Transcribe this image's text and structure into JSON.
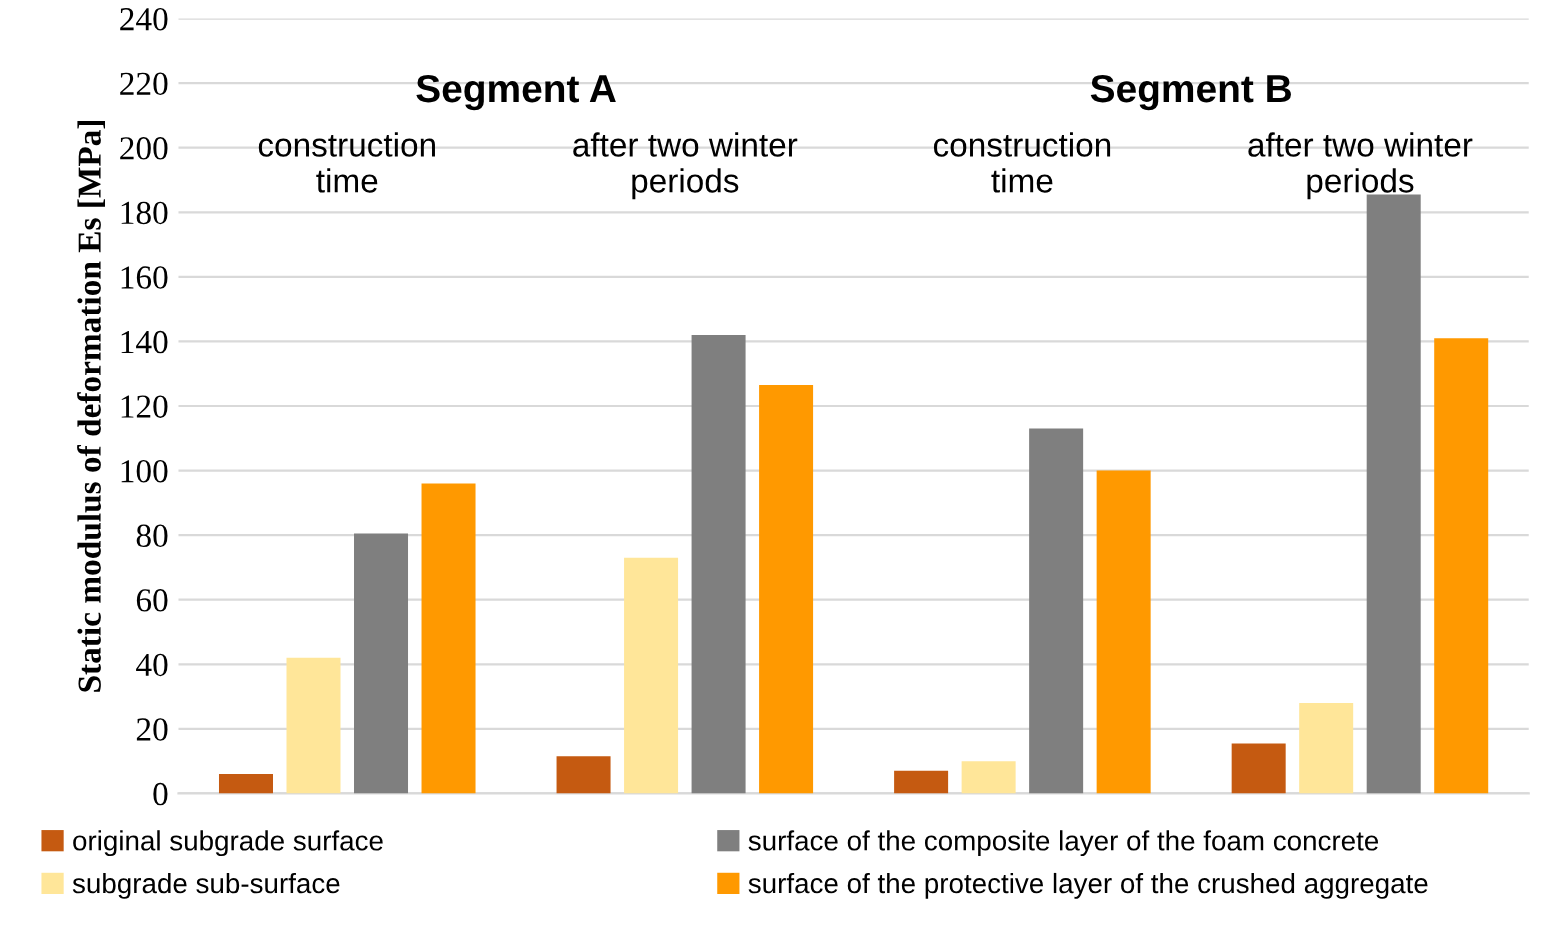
{
  "chart_data": {
    "type": "bar",
    "ylabel": "Static modulus of deformation Es [MPa]",
    "categories": [
      "construction\ntime",
      "after two winter\nperiods",
      "construction\ntime",
      "after two winter\nperiods"
    ],
    "series": [
      {
        "name": "original subgrade surface",
        "color": "#c55a11",
        "values": [
          6,
          11.5,
          7,
          15.5
        ]
      },
      {
        "name": "subgrade sub-surface",
        "color": "#ffe699",
        "values": [
          42,
          73,
          10,
          28
        ]
      },
      {
        "name": "surface of the composite layer of the foam concrete",
        "color": "#7f7f7f",
        "values": [
          80.5,
          142,
          113,
          185.5
        ]
      },
      {
        "name": "surface of the protective layer of the crushed aggregate",
        "color": "#ff9900",
        "values": [
          96,
          126.5,
          100,
          141
        ]
      }
    ],
    "annotations": [
      "Segment A",
      "Segment B"
    ],
    "ylim": [
      0,
      240
    ],
    "yticks": [
      0,
      20,
      40,
      60,
      80,
      100,
      120,
      140,
      160,
      180,
      200,
      220,
      240
    ],
    "grid": "y",
    "legend": "bottom"
  }
}
